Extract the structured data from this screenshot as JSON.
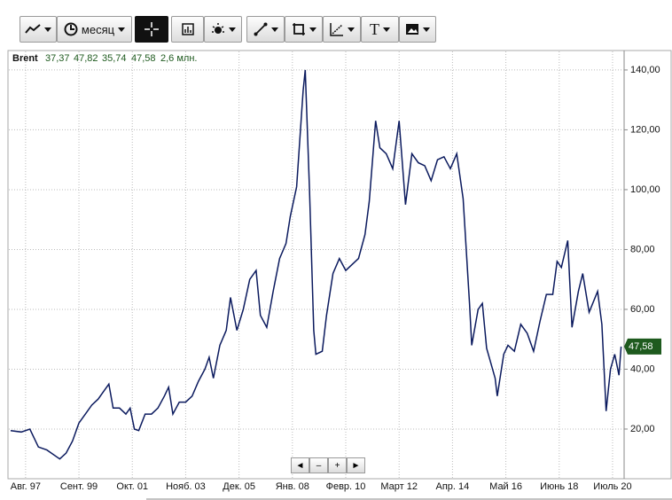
{
  "toolbar": {
    "period": "месяц",
    "text_tool": "T"
  },
  "navigator": [
    "◄",
    "–",
    "+",
    "►"
  ],
  "chart_data": {
    "type": "line",
    "header_values": [
      "37,37",
      "47,82",
      "35,74",
      "47,58"
    ],
    "volume": "2,6 млн.",
    "price_tag": "47,58",
    "x": [
      "1997-01",
      "1997-06",
      "1997-10",
      "1998-02",
      "1998-06",
      "1998-12",
      "1999-03",
      "1999-06",
      "1999-09",
      "1999-12",
      "2000-03",
      "2000-06",
      "2000-09",
      "2000-11",
      "2001-01",
      "2001-04",
      "2001-07",
      "2001-09",
      "2001-11",
      "2002-01",
      "2002-04",
      "2002-07",
      "2002-10",
      "2003-01",
      "2003-03",
      "2003-05",
      "2003-08",
      "2003-11",
      "2004-02",
      "2004-05",
      "2004-08",
      "2004-10",
      "2004-12",
      "2005-03",
      "2005-06",
      "2005-08",
      "2005-11",
      "2006-02",
      "2006-05",
      "2006-08",
      "2006-10",
      "2007-01",
      "2007-04",
      "2007-07",
      "2007-10",
      "2007-12",
      "2008-03",
      "2008-06",
      "2008-07",
      "2008-09",
      "2008-11",
      "2008-12",
      "2009-03",
      "2009-05",
      "2009-08",
      "2009-11",
      "2010-02",
      "2010-05",
      "2010-08",
      "2010-11",
      "2011-01",
      "2011-04",
      "2011-06",
      "2011-09",
      "2011-12",
      "2012-03",
      "2012-06",
      "2012-09",
      "2012-12",
      "2013-03",
      "2013-06",
      "2013-09",
      "2013-12",
      "2014-03",
      "2014-06",
      "2014-09",
      "2014-12",
      "2015-01",
      "2015-04",
      "2015-06",
      "2015-08",
      "2015-12",
      "2016-01",
      "2016-04",
      "2016-06",
      "2016-09",
      "2016-12",
      "2017-03",
      "2017-06",
      "2017-09",
      "2017-12",
      "2018-03",
      "2018-05",
      "2018-07",
      "2018-10",
      "2018-12",
      "2019-03",
      "2019-05",
      "2019-08",
      "2019-12",
      "2020-02",
      "2020-04",
      "2020-06",
      "2020-08",
      "2020-10",
      "2020-11"
    ],
    "series": [
      {
        "name": "Brent",
        "color": "#0b1a5e",
        "values": [
          19.5,
          19,
          20,
          14,
          13,
          10,
          12,
          16,
          22,
          25,
          28,
          30,
          33,
          35,
          27,
          27,
          25,
          27,
          20,
          19.5,
          25,
          25,
          27,
          31,
          34,
          25,
          29,
          29,
          31,
          36,
          40,
          44,
          37,
          48,
          53,
          64,
          53,
          60,
          70,
          73,
          58,
          54,
          66,
          77,
          82,
          91,
          101,
          133,
          140,
          100,
          53,
          45,
          46,
          58,
          72,
          77,
          73,
          75,
          77,
          85,
          96,
          123,
          114,
          112,
          107,
          123,
          95,
          112,
          109,
          108,
          103,
          110,
          111,
          107,
          112,
          97,
          62,
          48,
          60,
          62,
          47,
          37,
          31,
          45,
          48,
          46,
          55,
          52,
          46,
          56,
          65,
          65,
          76,
          74,
          83,
          54,
          66,
          72,
          59,
          66,
          55,
          26,
          40,
          45,
          38,
          47.58
        ]
      }
    ],
    "xlim": [
      "1997-01",
      "2020-12"
    ],
    "xticks": [
      {
        "value": "1997-08",
        "label": "Авг. 97"
      },
      {
        "value": "1999-09",
        "label": "Сент. 99"
      },
      {
        "value": "2001-10",
        "label": "Окт. 01"
      },
      {
        "value": "2003-11",
        "label": "Нояб. 03"
      },
      {
        "value": "2005-12",
        "label": "Дек. 05"
      },
      {
        "value": "2008-01",
        "label": "Янв. 08"
      },
      {
        "value": "2010-02",
        "label": "Февр. 10"
      },
      {
        "value": "2012-03",
        "label": "Март 12"
      },
      {
        "value": "2014-04",
        "label": "Апр. 14"
      },
      {
        "value": "2016-05",
        "label": "Май 16"
      },
      {
        "value": "2018-06",
        "label": "Июнь 18"
      },
      {
        "value": "2020-07",
        "label": "Июль 20"
      }
    ],
    "ylim": [
      3.4,
      146.2
    ],
    "yticks": [
      {
        "value": 20,
        "label": "20,00"
      },
      {
        "value": 40,
        "label": "40,00"
      },
      {
        "value": 60,
        "label": "60,00"
      },
      {
        "value": 80,
        "label": "80,00"
      },
      {
        "value": 100,
        "label": "100,00"
      },
      {
        "value": 120,
        "label": "120,00"
      },
      {
        "value": 140,
        "label": "140,00"
      }
    ],
    "grid": true,
    "tag_color": "#1e5a1e"
  }
}
